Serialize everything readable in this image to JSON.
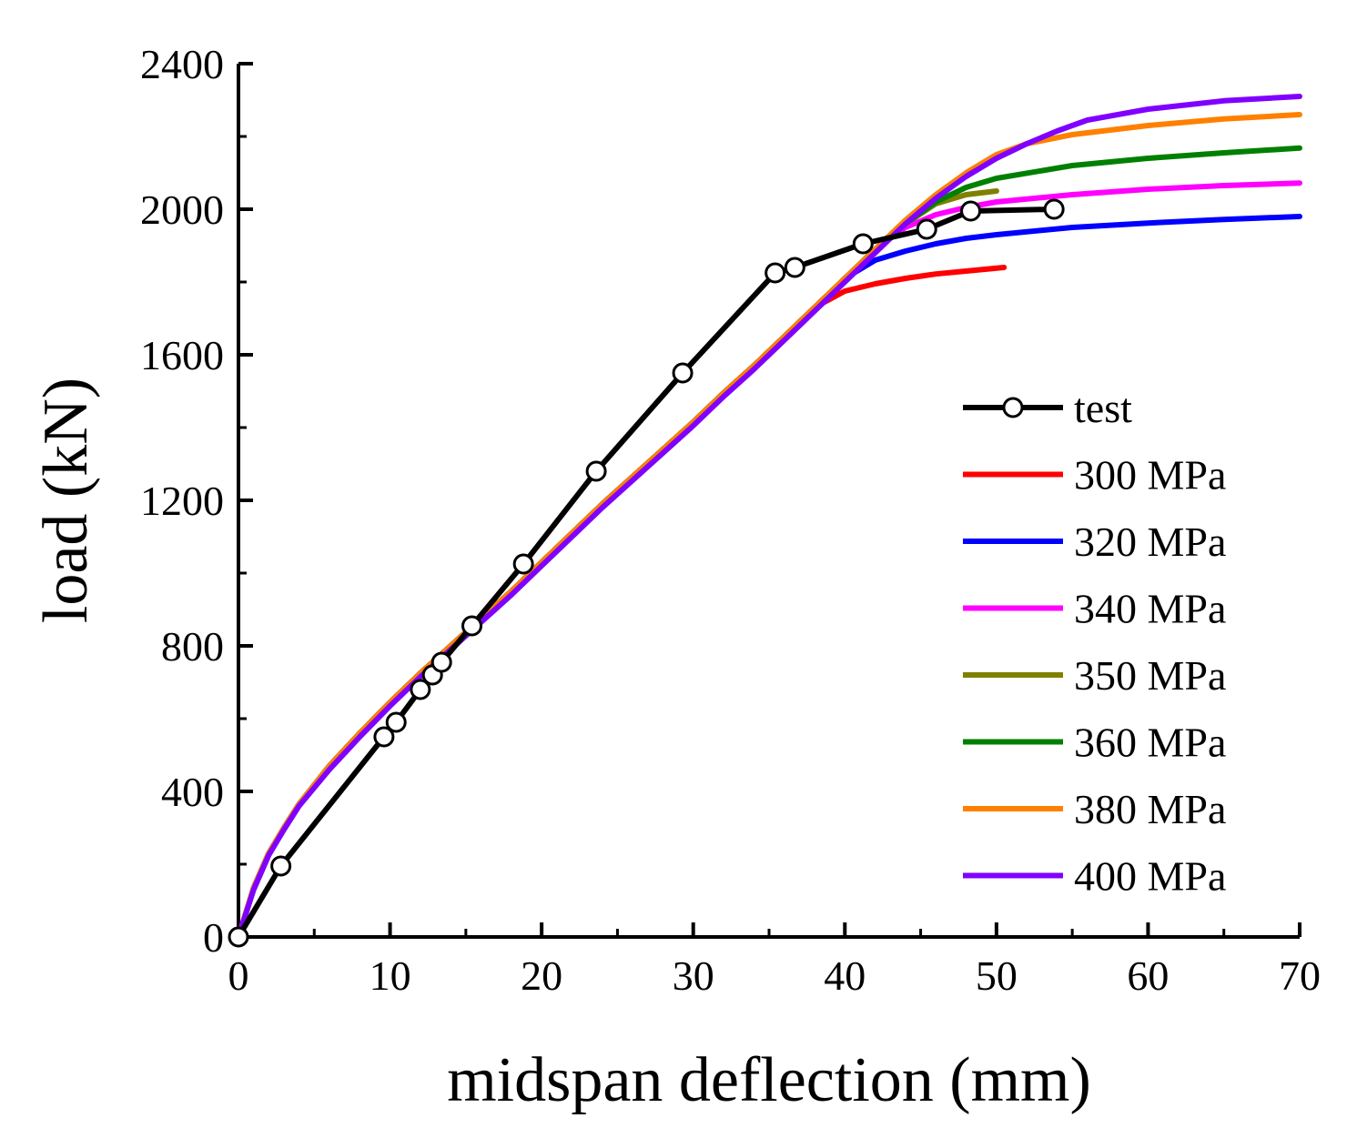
{
  "chart_data": {
    "type": "line",
    "xlabel": "midspan deflection (mm)",
    "ylabel": "load (kN)",
    "xlim": [
      0,
      70
    ],
    "ylim": [
      0,
      2400
    ],
    "xticks": [
      0,
      10,
      20,
      30,
      40,
      50,
      60,
      70
    ],
    "yticks": [
      0,
      400,
      800,
      1200,
      1600,
      2000,
      2400
    ],
    "grid": false,
    "legend_position": "right",
    "series": [
      {
        "name": "test",
        "color": "#000000",
        "markers": "open-circle",
        "x": [
          0,
          2.8,
          9.6,
          10.4,
          12.0,
          12.8,
          13.4,
          15.4,
          18.8,
          23.6,
          29.3,
          35.4,
          36.7,
          41.2,
          45.4,
          48.3,
          53.8
        ],
        "y": [
          0,
          195,
          550,
          590,
          680,
          720,
          755,
          855,
          1025,
          1280,
          1550,
          1825,
          1840,
          1905,
          1945,
          1995,
          2000
        ]
      },
      {
        "name": "300 MPa",
        "color": "#ff0000",
        "x": [
          0,
          1,
          2,
          3,
          4,
          6,
          8,
          10,
          12,
          14,
          16,
          18,
          20,
          22,
          24,
          26,
          28,
          30,
          32,
          34,
          36,
          38,
          40,
          42,
          44,
          46,
          48,
          50.5
        ],
        "y": [
          0,
          135,
          230,
          300,
          365,
          470,
          560,
          645,
          725,
          800,
          875,
          950,
          1030,
          1110,
          1190,
          1265,
          1340,
          1415,
          1495,
          1570,
          1650,
          1730,
          1775,
          1795,
          1810,
          1822,
          1830,
          1840
        ]
      },
      {
        "name": "320 MPa",
        "color": "#0000ff",
        "x": [
          0,
          1,
          2,
          3,
          4,
          6,
          8,
          10,
          12,
          14,
          16,
          18,
          20,
          22,
          24,
          26,
          28,
          30,
          32,
          34,
          36,
          38,
          40,
          42,
          44,
          46,
          48,
          50,
          55,
          60,
          65,
          70
        ],
        "y": [
          0,
          135,
          230,
          300,
          365,
          470,
          560,
          645,
          725,
          800,
          875,
          950,
          1030,
          1110,
          1190,
          1265,
          1340,
          1415,
          1495,
          1570,
          1650,
          1730,
          1810,
          1860,
          1885,
          1905,
          1920,
          1930,
          1950,
          1962,
          1972,
          1980
        ]
      },
      {
        "name": "340 MPa",
        "color": "#ff00ff",
        "x": [
          0,
          1,
          2,
          3,
          4,
          6,
          8,
          10,
          12,
          14,
          16,
          18,
          20,
          22,
          24,
          26,
          28,
          30,
          32,
          34,
          36,
          38,
          40,
          42,
          44,
          46,
          48,
          50,
          55,
          60,
          65,
          70
        ],
        "y": [
          0,
          135,
          230,
          300,
          365,
          470,
          560,
          645,
          725,
          800,
          875,
          950,
          1030,
          1110,
          1190,
          1265,
          1340,
          1415,
          1495,
          1570,
          1650,
          1730,
          1810,
          1890,
          1950,
          1985,
          2005,
          2020,
          2040,
          2055,
          2065,
          2072
        ]
      },
      {
        "name": "350 MPa",
        "color": "#808000",
        "x": [
          0,
          1,
          2,
          3,
          4,
          6,
          8,
          10,
          12,
          14,
          16,
          18,
          20,
          22,
          24,
          26,
          28,
          30,
          32,
          34,
          36,
          38,
          40,
          42,
          44,
          46,
          48,
          50
        ],
        "y": [
          0,
          135,
          230,
          300,
          365,
          470,
          560,
          645,
          725,
          800,
          875,
          950,
          1030,
          1110,
          1190,
          1265,
          1340,
          1415,
          1495,
          1570,
          1650,
          1730,
          1810,
          1890,
          1960,
          2015,
          2040,
          2050
        ]
      },
      {
        "name": "360 MPa",
        "color": "#008000",
        "x": [
          0,
          1,
          2,
          3,
          4,
          6,
          8,
          10,
          12,
          14,
          16,
          18,
          20,
          22,
          24,
          26,
          28,
          30,
          32,
          34,
          36,
          38,
          40,
          42,
          44,
          46,
          48,
          50,
          55,
          60,
          65,
          70
        ],
        "y": [
          0,
          135,
          230,
          300,
          365,
          470,
          560,
          645,
          725,
          800,
          875,
          950,
          1030,
          1110,
          1190,
          1265,
          1340,
          1415,
          1495,
          1570,
          1650,
          1730,
          1810,
          1890,
          1960,
          2020,
          2060,
          2085,
          2120,
          2140,
          2155,
          2168
        ]
      },
      {
        "name": "380 MPa",
        "color": "#ff8000",
        "x": [
          0,
          1,
          2,
          3,
          4,
          6,
          8,
          10,
          12,
          14,
          16,
          18,
          20,
          22,
          24,
          26,
          28,
          30,
          32,
          34,
          36,
          38,
          40,
          42,
          44,
          46,
          48,
          50,
          52,
          55,
          60,
          65,
          70
        ],
        "y": [
          0,
          135,
          230,
          300,
          365,
          470,
          560,
          645,
          725,
          800,
          875,
          950,
          1030,
          1110,
          1190,
          1265,
          1340,
          1415,
          1495,
          1570,
          1650,
          1730,
          1810,
          1890,
          1970,
          2040,
          2100,
          2150,
          2180,
          2205,
          2230,
          2248,
          2260
        ]
      },
      {
        "name": "400 MPa",
        "color": "#8000ff",
        "x": [
          0,
          1,
          2,
          3,
          4,
          6,
          8,
          10,
          12,
          14,
          16,
          18,
          20,
          22,
          24,
          26,
          28,
          30,
          32,
          34,
          36,
          38,
          40,
          42,
          44,
          46,
          48,
          50,
          52,
          54,
          56,
          60,
          65,
          70
        ],
        "y": [
          0,
          130,
          225,
          295,
          360,
          460,
          550,
          635,
          715,
          790,
          865,
          940,
          1020,
          1100,
          1180,
          1255,
          1330,
          1405,
          1485,
          1560,
          1640,
          1720,
          1800,
          1880,
          1960,
          2030,
          2090,
          2140,
          2180,
          2215,
          2245,
          2275,
          2298,
          2310
        ]
      }
    ]
  }
}
